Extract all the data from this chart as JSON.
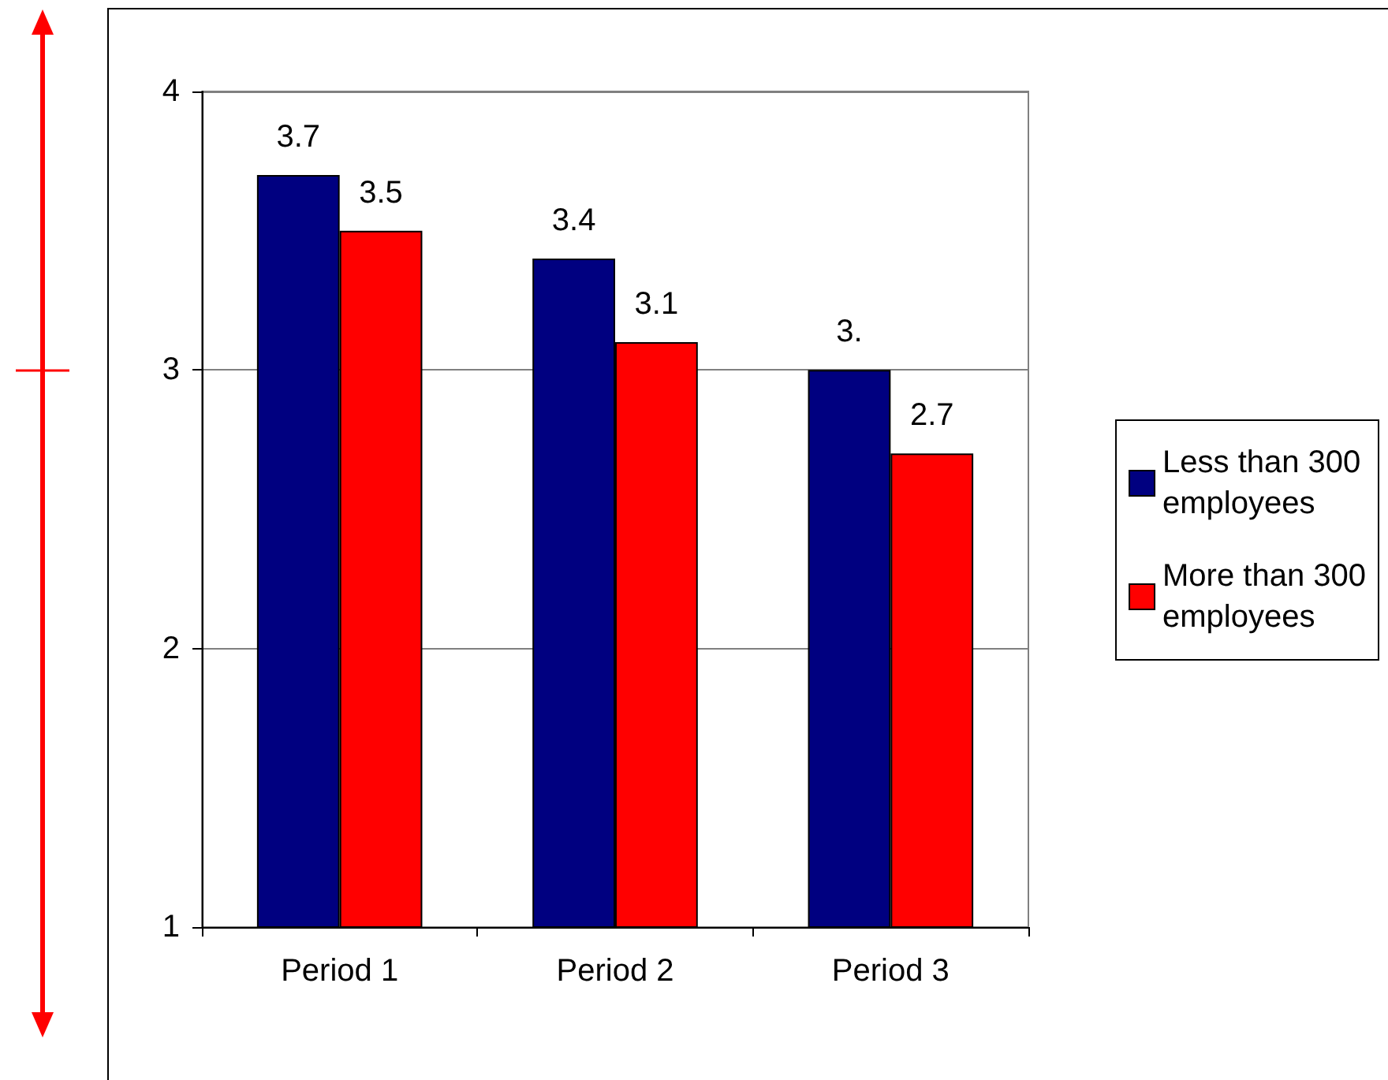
{
  "chart_data": {
    "type": "bar",
    "categories": [
      "Period 1",
      "Period 2",
      "Period 3"
    ],
    "series": [
      {
        "name": "Less than 300 employees",
        "color": "#000080",
        "values": [
          3.7,
          3.4,
          3.0
        ],
        "value_labels": [
          "3.7",
          "3.4",
          "3."
        ]
      },
      {
        "name": "More than 300 employees",
        "color": "#ff0000",
        "values": [
          3.5,
          3.1,
          2.7
        ],
        "value_labels": [
          "3.5",
          "3.1",
          "2.7"
        ]
      }
    ],
    "ylim": [
      1,
      4
    ],
    "yticks": [
      1,
      2,
      3,
      4
    ],
    "grid": "y",
    "legend": "right"
  }
}
